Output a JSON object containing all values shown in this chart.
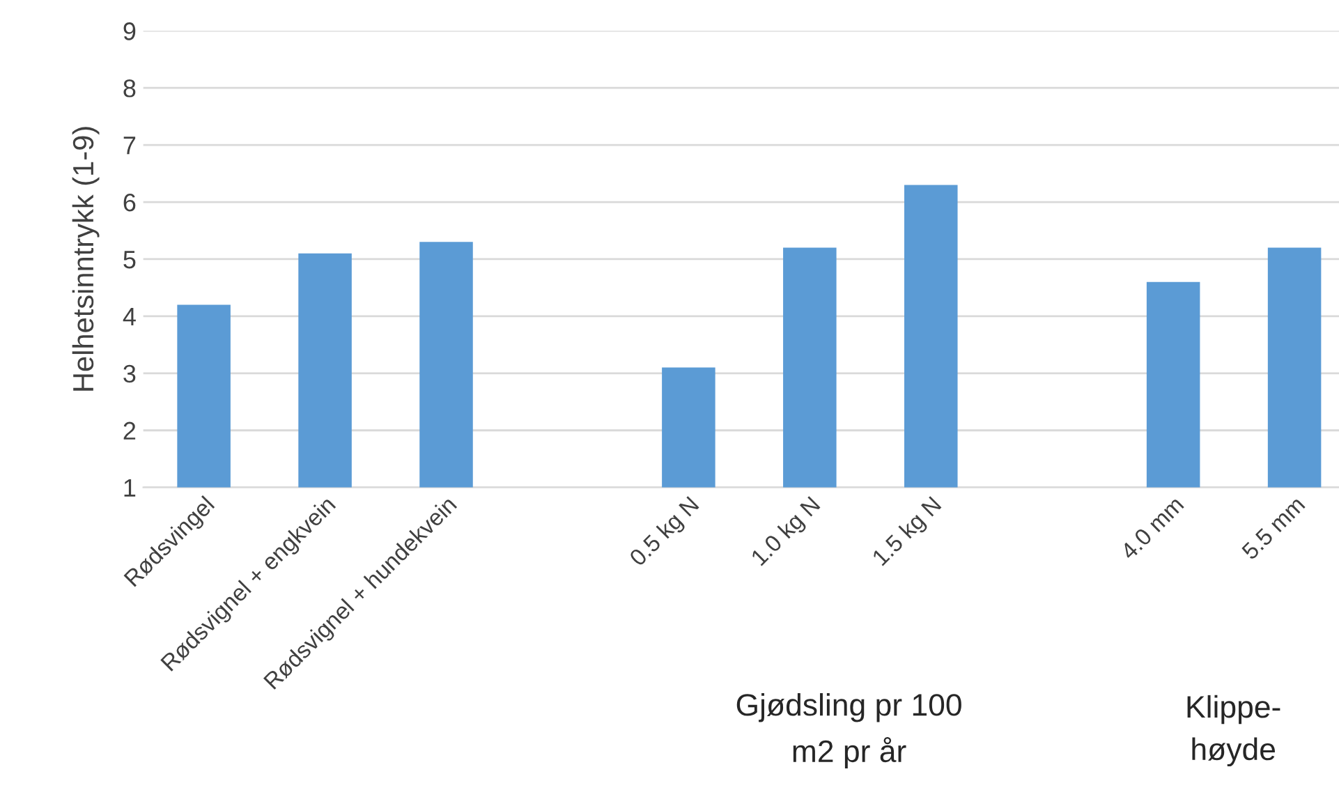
{
  "chart_data": {
    "type": "bar",
    "ylabel": "Helhetsinntrykk (1-9)",
    "categories": [
      "Rødsvingel",
      "Rødsvignel + engkvein",
      "Rødsvignel + hundekvein",
      null,
      "0.5 kg N",
      "1.0 kg N",
      "1.5 kg N",
      null,
      "4.0 mm",
      "5.5 mm"
    ],
    "values": [
      4.2,
      5.1,
      5.3,
      null,
      3.1,
      5.2,
      6.3,
      null,
      4.6,
      5.2
    ],
    "color": "#5b9bd5",
    "ylim": [
      1,
      9
    ],
    "yticks": [
      1,
      2,
      3,
      4,
      5,
      6,
      7,
      8,
      9
    ],
    "grid": "y",
    "annotations": [
      "Gjødsling pr 100\nm2 pr år",
      "Klippe-\nhøyde"
    ]
  }
}
